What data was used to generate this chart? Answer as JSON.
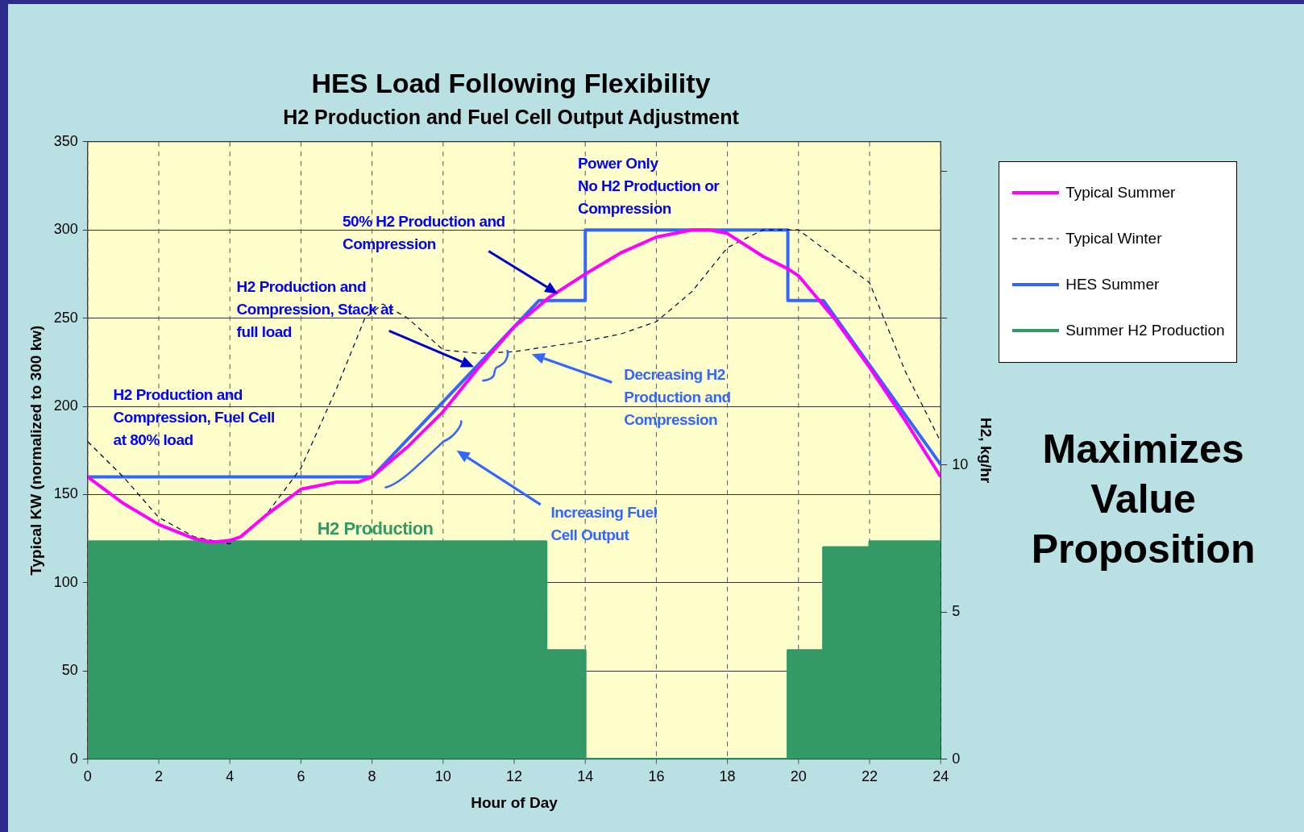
{
  "chart_data": {
    "type": "line",
    "title": "HES Load Following Flexibility",
    "subtitle": "H2 Production and Fuel Cell Output Adjustment",
    "xlabel": "Hour of Day",
    "ylabel": "Typical KW (normalized to 300 kw)",
    "y2label": "H2, kg/hr",
    "xlim": [
      0,
      24
    ],
    "xticks": [
      0,
      2,
      4,
      6,
      8,
      10,
      12,
      14,
      16,
      18,
      20,
      22,
      24
    ],
    "ylim": [
      0,
      350
    ],
    "yticks": [
      0,
      50,
      100,
      150,
      200,
      250,
      300,
      350
    ],
    "y2lim": [
      0,
      21
    ],
    "y2ticks": [
      0,
      5,
      10,
      {
        "value": 15,
        "label": null
      },
      {
        "value": 20,
        "label": null
      }
    ],
    "grid": true,
    "legend": "right",
    "marker": "none",
    "series": [
      {
        "name": "Typical Summer",
        "color": "#ff00ff",
        "type": "line",
        "x": [
          0,
          1,
          2,
          3,
          3.5,
          4,
          4.3,
          5,
          6,
          7,
          7.6,
          8,
          9,
          10,
          11,
          12,
          13,
          14,
          15,
          16,
          17,
          17.5,
          18,
          19,
          19.7,
          20,
          21,
          22,
          23,
          24
        ],
        "values": [
          160,
          145,
          133,
          125,
          123,
          124,
          126,
          138,
          153,
          157,
          157,
          160,
          177,
          197,
          222,
          245,
          262,
          275,
          287,
          296,
          300,
          300,
          298,
          285,
          278,
          274,
          250,
          222,
          192,
          160
        ]
      },
      {
        "name": "Typical Winter",
        "color": "#000033",
        "type": "line",
        "line_style": "dashed",
        "x": [
          0,
          1,
          2,
          3,
          4,
          5,
          6,
          7,
          7.8,
          8.3,
          9,
          10,
          11,
          12,
          13,
          14,
          15,
          16,
          17,
          18,
          19,
          20,
          21,
          22,
          23,
          24
        ],
        "values": [
          180,
          160,
          137,
          126,
          122,
          138,
          165,
          210,
          250,
          258,
          250,
          232,
          230,
          231,
          234,
          237,
          241,
          248,
          265,
          290,
          300,
          300,
          285,
          270,
          220,
          180
        ]
      },
      {
        "name": "HES Summer",
        "color": "#3366ff",
        "type": "line",
        "x": [
          0,
          8,
          12.7,
          14,
          14,
          19.7,
          19.7,
          20.7,
          24
        ],
        "values": [
          160,
          160,
          260,
          260,
          300,
          300,
          260,
          260,
          167
        ]
      },
      {
        "name": "Summer H2 Production",
        "color": "#339966",
        "type": "area",
        "axis": "y2",
        "x": [
          0,
          12.9,
          12.9,
          14,
          14,
          19.7,
          19.7,
          20.7,
          20.7,
          22,
          22,
          24
        ],
        "values": [
          7.4,
          7.4,
          3.7,
          3.7,
          0,
          0,
          3.7,
          3.7,
          7.2,
          7.2,
          7.4,
          7.4
        ]
      }
    ],
    "annotations": [
      "H2 Production and\nCompression, Fuel Cell\nat 80% load",
      "H2 Production and\nCompression, Stack at\nfull load",
      "50% H2 Production and\nCompression",
      "Power Only\nNo H2 Production or\nCompression",
      "Decreasing H2\nProduction and\nCompression",
      "Increasing Fuel\nCell Output",
      "H2 Production",
      "Maximizes\nValue\nProposition"
    ]
  }
}
